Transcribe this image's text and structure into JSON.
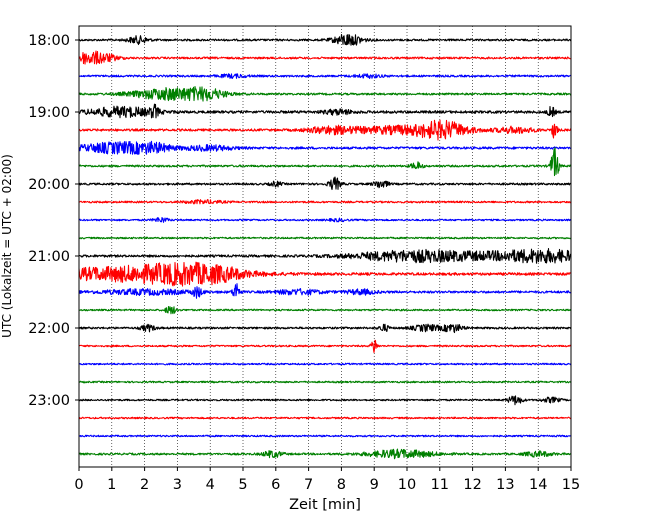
{
  "chart_data": {
    "type": "line",
    "title": "",
    "xlabel": "Zeit  [min]",
    "ylabel": "UTC (Lokalzeit = UTC + 02:00)",
    "xlim": [
      0,
      15
    ],
    "xticks": [
      "0",
      "1",
      "2",
      "3",
      "4",
      "5",
      "6",
      "7",
      "8",
      "9",
      "10",
      "11",
      "12",
      "13",
      "14",
      "15"
    ],
    "yticks": [
      "18:00",
      "19:00",
      "20:00",
      "21:00",
      "22:00",
      "23:00"
    ],
    "grid": {
      "x": "dotted",
      "y": "off"
    },
    "row_interval_minutes": 15,
    "colors": [
      "#000000",
      "#ff0000",
      "#0000ff",
      "#008000"
    ],
    "rows": [
      {
        "start": "18:00",
        "color": "#000000",
        "amplitude": 0.12,
        "events": [
          {
            "t": 1.8,
            "a": 0.45,
            "w": 0.22
          },
          {
            "t": 8.2,
            "a": 0.75,
            "w": 0.3
          }
        ]
      },
      {
        "start": "18:15",
        "color": "#ff0000",
        "amplitude": 0.12,
        "events": [
          {
            "t": 0.25,
            "a": 0.7,
            "w": 0.4
          },
          {
            "t": 0.8,
            "a": 0.3,
            "w": 0.3
          }
        ]
      },
      {
        "start": "18:30",
        "color": "#0000ff",
        "amplitude": 0.12,
        "events": [
          {
            "t": 4.7,
            "a": 0.2,
            "w": 0.3
          },
          {
            "t": 8.8,
            "a": 0.2,
            "w": 0.3
          }
        ]
      },
      {
        "start": "18:45",
        "color": "#008000",
        "amplitude": 0.12,
        "events": [
          {
            "t": 2.8,
            "a": 0.75,
            "w": 0.8
          },
          {
            "t": 3.9,
            "a": 0.5,
            "w": 0.4
          }
        ]
      },
      {
        "start": "19:00",
        "color": "#000000",
        "amplitude": 0.16,
        "events": [
          {
            "t": 1.3,
            "a": 0.6,
            "w": 0.7
          },
          {
            "t": 2.3,
            "a": 0.7,
            "w": 0.08
          },
          {
            "t": 7.9,
            "a": 0.3,
            "w": 0.3
          },
          {
            "t": 14.4,
            "a": 0.6,
            "w": 0.08
          }
        ]
      },
      {
        "start": "19:15",
        "color": "#ff0000",
        "amplitude": 0.14,
        "events": [
          {
            "t": 7.7,
            "a": 0.4,
            "w": 0.5
          },
          {
            "t": 10.0,
            "a": 0.5,
            "w": 1.2
          },
          {
            "t": 11.1,
            "a": 0.8,
            "w": 0.5
          },
          {
            "t": 13.3,
            "a": 0.35,
            "w": 0.4
          },
          {
            "t": 14.5,
            "a": 1.3,
            "w": 0.05
          }
        ]
      },
      {
        "start": "19:30",
        "color": "#0000ff",
        "amplitude": 0.14,
        "events": [
          {
            "t": 1.3,
            "a": 0.7,
            "w": 0.9
          },
          {
            "t": 2.3,
            "a": 0.3,
            "w": 0.3
          },
          {
            "t": 4.0,
            "a": 0.3,
            "w": 0.5
          }
        ]
      },
      {
        "start": "19:45",
        "color": "#008000",
        "amplitude": 0.12,
        "events": [
          {
            "t": 10.3,
            "a": 0.45,
            "w": 0.12
          },
          {
            "t": 14.5,
            "a": 2.2,
            "w": 0.08
          }
        ]
      },
      {
        "start": "20:00",
        "color": "#000000",
        "amplitude": 0.12,
        "events": [
          {
            "t": 6.0,
            "a": 0.3,
            "w": 0.12
          },
          {
            "t": 7.8,
            "a": 0.8,
            "w": 0.12
          },
          {
            "t": 9.2,
            "a": 0.5,
            "w": 0.15
          }
        ]
      },
      {
        "start": "20:15",
        "color": "#ff0000",
        "amplitude": 0.11,
        "events": [
          {
            "t": 3.8,
            "a": 0.2,
            "w": 0.4
          }
        ]
      },
      {
        "start": "20:30",
        "color": "#0000ff",
        "amplitude": 0.1,
        "events": [
          {
            "t": 2.5,
            "a": 0.3,
            "w": 0.15
          },
          {
            "t": 7.9,
            "a": 0.15,
            "w": 0.2
          }
        ]
      },
      {
        "start": "20:45",
        "color": "#008000",
        "amplitude": 0.1,
        "events": []
      },
      {
        "start": "21:00",
        "color": "#000000",
        "amplitude": 0.14,
        "events": [
          {
            "t": 10.0,
            "a": 0.55,
            "w": 1.2
          },
          {
            "t": 12.0,
            "a": 0.35,
            "w": 1.5
          },
          {
            "t": 14.2,
            "a": 0.7,
            "w": 0.9
          }
        ]
      },
      {
        "start": "21:15",
        "color": "#ff0000",
        "amplitude": 0.16,
        "events": [
          {
            "t": 1.5,
            "a": 0.85,
            "w": 2.0
          },
          {
            "t": 3.2,
            "a": 0.7,
            "w": 0.8
          },
          {
            "t": 4.3,
            "a": 0.45,
            "w": 0.6
          }
        ]
      },
      {
        "start": "21:30",
        "color": "#0000ff",
        "amplitude": 0.14,
        "events": [
          {
            "t": 2.0,
            "a": 0.3,
            "w": 1.0
          },
          {
            "t": 3.6,
            "a": 0.6,
            "w": 0.1
          },
          {
            "t": 4.8,
            "a": 1.2,
            "w": 0.07
          },
          {
            "t": 6.7,
            "a": 0.3,
            "w": 0.5
          },
          {
            "t": 8.6,
            "a": 0.3,
            "w": 0.3
          }
        ]
      },
      {
        "start": "21:45",
        "color": "#008000",
        "amplitude": 0.1,
        "events": [
          {
            "t": 2.8,
            "a": 0.5,
            "w": 0.12
          }
        ]
      },
      {
        "start": "22:00",
        "color": "#000000",
        "amplitude": 0.12,
        "events": [
          {
            "t": 2.1,
            "a": 0.4,
            "w": 0.15
          },
          {
            "t": 9.3,
            "a": 0.45,
            "w": 0.1
          },
          {
            "t": 10.6,
            "a": 0.4,
            "w": 0.3
          },
          {
            "t": 11.4,
            "a": 0.5,
            "w": 0.2
          }
        ]
      },
      {
        "start": "22:15",
        "color": "#ff0000",
        "amplitude": 0.1,
        "events": [
          {
            "t": 9.0,
            "a": 1.0,
            "w": 0.06
          }
        ]
      },
      {
        "start": "22:30",
        "color": "#0000ff",
        "amplitude": 0.1,
        "events": []
      },
      {
        "start": "22:45",
        "color": "#008000",
        "amplitude": 0.1,
        "events": []
      },
      {
        "start": "23:00",
        "color": "#000000",
        "amplitude": 0.1,
        "events": [
          {
            "t": 13.3,
            "a": 0.55,
            "w": 0.15
          },
          {
            "t": 14.4,
            "a": 0.3,
            "w": 0.2
          }
        ]
      },
      {
        "start": "23:15",
        "color": "#ff0000",
        "amplitude": 0.1,
        "events": []
      },
      {
        "start": "23:30",
        "color": "#0000ff",
        "amplitude": 0.1,
        "events": []
      },
      {
        "start": "23:45",
        "color": "#008000",
        "amplitude": 0.12,
        "events": [
          {
            "t": 5.9,
            "a": 0.4,
            "w": 0.2
          },
          {
            "t": 9.8,
            "a": 0.5,
            "w": 0.7
          },
          {
            "t": 14.0,
            "a": 0.3,
            "w": 0.3
          }
        ]
      }
    ]
  }
}
